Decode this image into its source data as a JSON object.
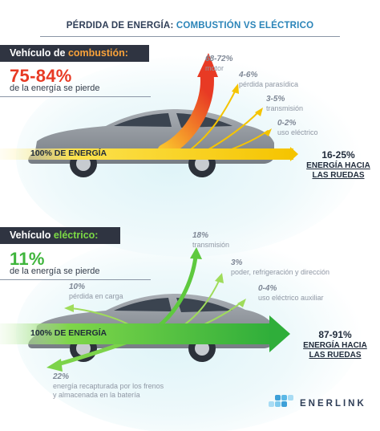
{
  "title": {
    "prefix": "PÉRDIDA DE ENERGÍA: ",
    "highlight": "COMBUSTIÓN VS ELÉCTRICO"
  },
  "combustion": {
    "badge_prefix": "Vehículo de ",
    "badge_accent": "combustión:",
    "loss_range": "75-84%",
    "loss_text": "de la energía se pierde",
    "bar_label": "100% DE ENERGÍA",
    "losses": [
      {
        "pct": "68-72%",
        "label": "motor"
      },
      {
        "pct": "4-6%",
        "label": "pérdida parasídica"
      },
      {
        "pct": "3-5%",
        "label": "transmisión"
      },
      {
        "pct": "0-2%",
        "label": "uso eléctrico"
      }
    ],
    "output_pct": "16-25%",
    "output_line1": "ENERGÍA HACIA",
    "output_line2": "LAS RUEDAS"
  },
  "electric": {
    "badge_prefix": "Vehículo ",
    "badge_accent": "eléctrico:",
    "loss_range": "11%",
    "loss_text": "de la energía se pierde",
    "bar_label": "100% DE ENERGÍA",
    "losses": [
      {
        "pct": "18%",
        "label": "transmisión"
      },
      {
        "pct": "3%",
        "label": "poder, refrigeración y dirección"
      },
      {
        "pct": "0-4%",
        "label": "uso eléctrico auxiliar"
      },
      {
        "pct": "10%",
        "label": "pérdida en carga"
      }
    ],
    "regen": {
      "pct": "22%",
      "line1": "energía recapturada por los frenos",
      "line2": "y almacenada en la batería"
    },
    "output_pct": "87-91%",
    "output_line1": "ENERGÍA HACIA",
    "output_line2": "LAS RUEDAS"
  },
  "brand": {
    "name": "ENERLINK"
  },
  "colors": {
    "orange": "#f9a23a",
    "red": "#e83a24",
    "yellow": "#f5c400",
    "green": "#3fb53c",
    "lime": "#a6e04a",
    "dark": "#2f3441",
    "car": "#8f959c"
  }
}
